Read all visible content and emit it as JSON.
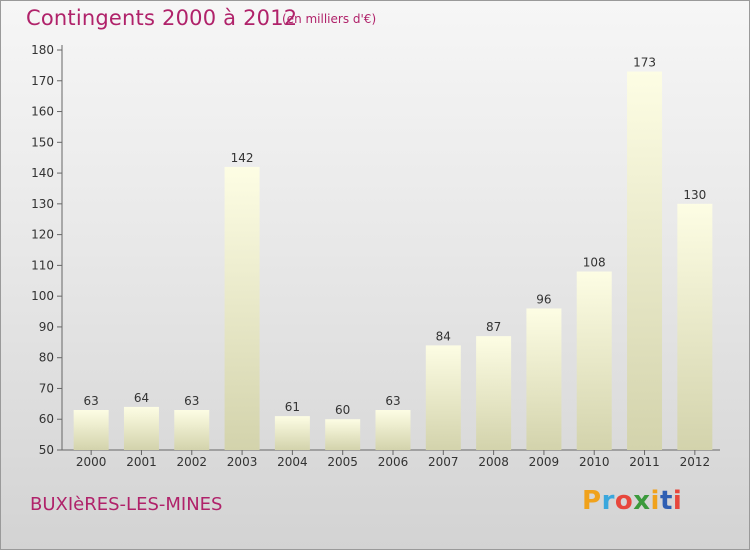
{
  "header": {
    "title": "Contingents 2000 à 2012",
    "subtitle": "(en milliers d'€)"
  },
  "footer": {
    "commune": "BUXIèRES-LES-MINES",
    "logo_text": "Proxiti"
  },
  "colors": {
    "title": "#b0226a",
    "bar_light": "#fdfde4",
    "bar_dark": "#d3d3ac",
    "logo_letters": [
      "#f0a21c",
      "#3aa7dd",
      "#e7473c",
      "#3b9a3c",
      "#f0a21c",
      "#2f5fb3",
      "#e7473c"
    ]
  },
  "chart_data": {
    "type": "bar",
    "title": "Contingents 2000 à 2012",
    "subtitle": "(en milliers d'€)",
    "categories": [
      "2000",
      "2001",
      "2002",
      "2003",
      "2004",
      "2005",
      "2006",
      "2007",
      "2008",
      "2009",
      "2010",
      "2011",
      "2012"
    ],
    "values": [
      63,
      64,
      63,
      142,
      61,
      60,
      63,
      84,
      87,
      96,
      108,
      173,
      130
    ],
    "ylim": [
      50,
      180
    ],
    "yticks": [
      50,
      60,
      70,
      80,
      90,
      100,
      110,
      120,
      130,
      140,
      150,
      160,
      170,
      180
    ],
    "grid": false,
    "data_labels": true
  }
}
